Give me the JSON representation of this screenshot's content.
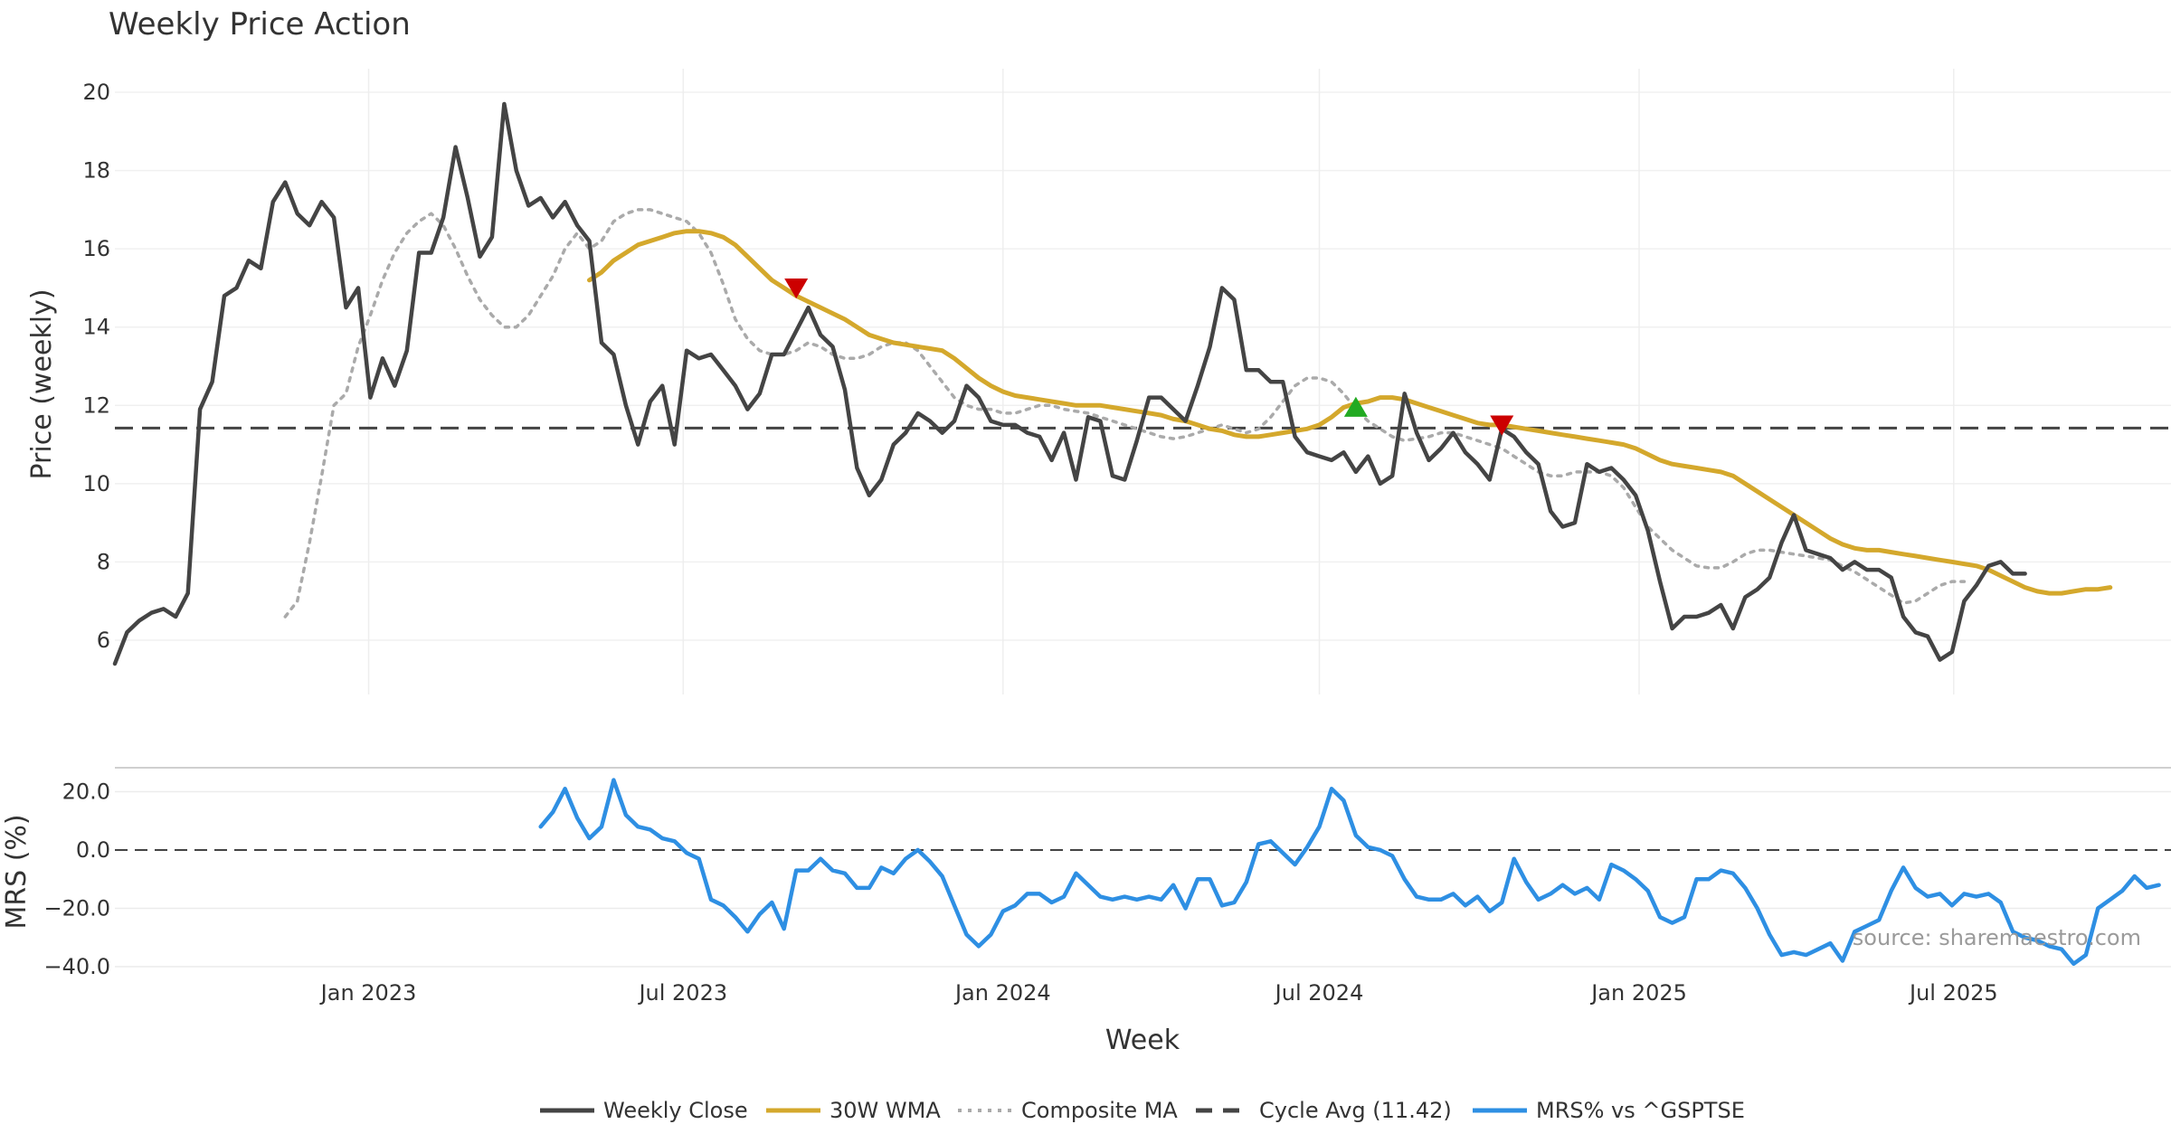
{
  "chart_data": [
    {
      "type": "line",
      "title": "Weekly Price Action",
      "xlabel": "",
      "ylabel": "Price (weekly)",
      "ylim": [
        5,
        20.5
      ],
      "yticks": [
        6,
        8,
        10,
        12,
        14,
        16,
        18,
        20
      ],
      "grid": true,
      "x_dates": [
        "2022-08-08",
        "2025-11-03"
      ],
      "x_ticks": [
        {
          "date": "2023-01-01",
          "label": "Jan 2023"
        },
        {
          "date": "2023-07-01",
          "label": "Jul 2023"
        },
        {
          "date": "2024-01-01",
          "label": "Jan 2024"
        },
        {
          "date": "2024-07-01",
          "label": "Jul 2024"
        },
        {
          "date": "2025-01-01",
          "label": "Jan 2025"
        },
        {
          "date": "2025-07-01",
          "label": "Jul 2025"
        }
      ],
      "series": [
        {
          "name": "Weekly Close",
          "color": "#444444",
          "style": "solid",
          "start": "2022-08-08",
          "values": [
            5.4,
            6.2,
            6.5,
            6.7,
            6.8,
            6.6,
            7.2,
            11.9,
            12.6,
            14.8,
            15.0,
            15.7,
            15.5,
            17.2,
            17.7,
            16.9,
            16.6,
            17.2,
            16.8,
            14.5,
            15.0,
            12.2,
            13.2,
            12.5,
            13.4,
            15.9,
            15.9,
            16.8,
            18.6,
            17.3,
            15.8,
            16.3,
            19.7,
            18.0,
            17.1,
            17.3,
            16.8,
            17.2,
            16.6,
            16.2,
            13.6,
            13.3,
            12.0,
            11.0,
            12.1,
            12.5,
            11.0,
            13.4,
            13.2,
            13.3,
            12.9,
            12.5,
            11.9,
            12.3,
            13.3,
            13.3,
            13.9,
            14.5,
            13.8,
            13.5,
            12.4,
            10.4,
            9.7,
            10.1,
            11.0,
            11.3,
            11.8,
            11.6,
            11.3,
            11.6,
            12.5,
            12.2,
            11.6,
            11.5,
            11.5,
            11.3,
            11.2,
            10.6,
            11.3,
            10.1,
            11.7,
            11.6,
            10.2,
            10.1,
            11.1,
            12.2,
            12.2,
            11.9,
            11.6,
            12.5,
            13.5,
            15.0,
            14.7,
            12.9,
            12.9,
            12.6,
            12.6,
            11.2,
            10.8,
            10.7,
            10.6,
            10.8,
            10.3,
            10.7,
            10.0,
            10.2,
            12.3,
            11.3,
            10.6,
            10.9,
            11.3,
            10.8,
            10.5,
            10.1,
            11.4,
            11.2,
            10.8,
            10.5,
            9.3,
            8.9,
            9.0,
            10.5,
            10.3,
            10.4,
            10.1,
            9.7,
            8.8,
            7.5,
            6.3,
            6.6,
            6.6,
            6.7,
            6.9,
            6.3,
            7.1,
            7.3,
            7.6,
            8.5,
            9.2,
            8.3,
            8.2,
            8.1,
            7.8,
            8.0,
            7.8,
            7.8,
            7.6,
            6.6,
            6.2,
            6.1,
            5.5,
            5.7,
            7.0,
            7.4,
            7.9,
            8.0,
            7.7,
            7.7
          ]
        },
        {
          "name": "30W WMA",
          "color": "#D4A82C",
          "style": "solid",
          "start": "2023-05-08",
          "values": [
            15.2,
            15.4,
            15.7,
            15.9,
            16.1,
            16.2,
            16.3,
            16.4,
            16.45,
            16.45,
            16.4,
            16.3,
            16.1,
            15.8,
            15.5,
            15.2,
            15.0,
            14.8,
            14.65,
            14.5,
            14.35,
            14.2,
            14.0,
            13.8,
            13.7,
            13.6,
            13.55,
            13.5,
            13.45,
            13.4,
            13.2,
            12.95,
            12.7,
            12.5,
            12.35,
            12.25,
            12.2,
            12.15,
            12.1,
            12.05,
            12.0,
            12.0,
            12.0,
            11.95,
            11.9,
            11.85,
            11.8,
            11.75,
            11.65,
            11.6,
            11.5,
            11.4,
            11.35,
            11.25,
            11.2,
            11.2,
            11.25,
            11.3,
            11.35,
            11.4,
            11.5,
            11.7,
            11.95,
            12.05,
            12.1,
            12.2,
            12.2,
            12.15,
            12.05,
            11.95,
            11.85,
            11.75,
            11.65,
            11.55,
            11.5,
            11.5,
            11.45,
            11.4,
            11.35,
            11.3,
            11.25,
            11.2,
            11.15,
            11.1,
            11.05,
            11.0,
            10.9,
            10.75,
            10.6,
            10.5,
            10.45,
            10.4,
            10.35,
            10.3,
            10.2,
            10.0,
            9.8,
            9.6,
            9.4,
            9.2,
            9.0,
            8.8,
            8.6,
            8.45,
            8.35,
            8.3,
            8.3,
            8.25,
            8.2,
            8.15,
            8.1,
            8.05,
            8.0,
            7.95,
            7.9,
            7.8,
            7.65,
            7.5,
            7.35,
            7.25,
            7.2,
            7.2,
            7.25,
            7.3,
            7.3,
            7.35
          ]
        },
        {
          "name": "Composite MA",
          "color": "#aaaaaa",
          "style": "dotted",
          "start": "2022-11-14",
          "values": [
            6.6,
            7.0,
            8.5,
            10.2,
            12.0,
            12.3,
            13.5,
            14.3,
            15.2,
            15.9,
            16.4,
            16.7,
            16.9,
            16.6,
            16.0,
            15.3,
            14.7,
            14.3,
            14.0,
            14.0,
            14.3,
            14.8,
            15.3,
            16.0,
            16.4,
            16.0,
            16.2,
            16.7,
            16.9,
            17.0,
            17.0,
            16.9,
            16.8,
            16.7,
            16.4,
            15.9,
            15.1,
            14.2,
            13.7,
            13.4,
            13.3,
            13.3,
            13.4,
            13.6,
            13.5,
            13.3,
            13.2,
            13.2,
            13.3,
            13.5,
            13.6,
            13.6,
            13.4,
            13.0,
            12.6,
            12.2,
            12.0,
            11.9,
            11.9,
            11.8,
            11.8,
            11.9,
            12.0,
            12.0,
            11.9,
            11.85,
            11.8,
            11.7,
            11.6,
            11.5,
            11.4,
            11.3,
            11.2,
            11.15,
            11.2,
            11.3,
            11.4,
            11.5,
            11.4,
            11.3,
            11.4,
            11.7,
            12.1,
            12.5,
            12.7,
            12.7,
            12.6,
            12.3,
            11.9,
            11.6,
            11.4,
            11.2,
            11.1,
            11.15,
            11.2,
            11.3,
            11.3,
            11.2,
            11.1,
            11.0,
            10.9,
            10.7,
            10.5,
            10.3,
            10.2,
            10.2,
            10.3,
            10.3,
            10.3,
            10.2,
            9.9,
            9.4,
            8.9,
            8.6,
            8.3,
            8.1,
            7.9,
            7.85,
            7.85,
            8.0,
            8.2,
            8.3,
            8.3,
            8.25,
            8.2,
            8.15,
            8.1,
            8.05,
            7.9,
            7.75,
            7.55,
            7.35,
            7.15,
            6.95,
            7.0,
            7.2,
            7.4,
            7.5,
            7.5
          ]
        }
      ],
      "reference_line": {
        "name": "Cycle Avg (11.42)",
        "value": 11.42,
        "color": "#444444",
        "style": "dashed"
      },
      "markers": [
        {
          "date": "2023-09-04",
          "value": 15.0,
          "shape": "triangle-down",
          "color": "#CC0000"
        },
        {
          "date": "2024-07-22",
          "value": 11.95,
          "shape": "triangle-up",
          "color": "#22AA22"
        },
        {
          "date": "2024-10-14",
          "value": 11.5,
          "shape": "triangle-down",
          "color": "#CC0000"
        }
      ]
    },
    {
      "type": "line",
      "title": "",
      "xlabel": "Week",
      "ylabel": "MRS (%)",
      "ylim": [
        -42,
        28
      ],
      "yticks": [
        20,
        0,
        -20,
        -40
      ],
      "ytick_labels": [
        "20.0",
        "0.0",
        "−20.0",
        "−40.0"
      ],
      "zero_line": {
        "value": 0,
        "style": "dashed",
        "color": "#444444"
      },
      "series": [
        {
          "name": "MRS% vs ^GSPTSE",
          "color": "#2E8FE3",
          "style": "solid",
          "start": "2023-04-10",
          "values": [
            8,
            13,
            21,
            11,
            4,
            8,
            24,
            12,
            8,
            7,
            4,
            3,
            -1,
            -3,
            -17,
            -19,
            -23,
            -28,
            -22,
            -18,
            -27,
            -7,
            -7,
            -3,
            -7,
            -8,
            -13,
            -13,
            -6,
            -8,
            -3,
            0,
            -4,
            -9,
            -19,
            -29,
            -33,
            -29,
            -21,
            -19,
            -15,
            -15,
            -18,
            -16,
            -8,
            -12,
            -16,
            -17,
            -16,
            -17,
            -16,
            -17,
            -12,
            -20,
            -10,
            -10,
            -19,
            -18,
            -11,
            2,
            3,
            -1,
            -5,
            1,
            8,
            21,
            17,
            5,
            1,
            0,
            -2,
            -10,
            -16,
            -17,
            -17,
            -15,
            -19,
            -16,
            -21,
            -18,
            -3,
            -11,
            -17,
            -15,
            -12,
            -15,
            -13,
            -17,
            -5,
            -7,
            -10,
            -14,
            -23,
            -25,
            -23,
            -10,
            -10,
            -7,
            -8,
            -13,
            -20,
            -29,
            -36,
            -35,
            -36,
            -34,
            -32,
            -38,
            -28,
            -26,
            -24,
            -14,
            -6,
            -13,
            -16,
            -15,
            -19,
            -15,
            -16,
            -15,
            -18,
            -28,
            -30,
            -31,
            -33,
            -34,
            -39,
            -36,
            -20,
            -17,
            -14,
            -9,
            -13,
            -12
          ]
        }
      ],
      "annotation": "source: sharemaestro.com"
    }
  ],
  "legend": [
    {
      "label": "Weekly Close",
      "color": "#444444",
      "style": "solid"
    },
    {
      "label": "30W WMA",
      "color": "#D4A82C",
      "style": "solid"
    },
    {
      "label": "Composite MA",
      "color": "#aaaaaa",
      "style": "dotted"
    },
    {
      "label": "Cycle Avg (11.42)",
      "color": "#444444",
      "style": "dashed"
    },
    {
      "label": "MRS% vs ^GSPTSE",
      "color": "#2E8FE3",
      "style": "solid"
    }
  ]
}
